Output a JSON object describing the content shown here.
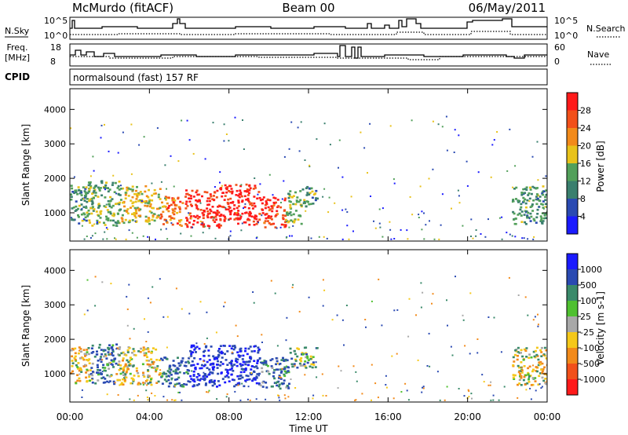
{
  "header": {
    "station": "McMurdo (fitACF)",
    "beam": "Beam 00",
    "date": "06/May/2011"
  },
  "noise_panel": {
    "left_label": "N.Sky",
    "right_label": "N.Search",
    "tick_top": "10^5",
    "tick_bottom": "10^0"
  },
  "freq_panel": {
    "left_label_line1": "Freq.",
    "left_label_line2": "[MHz]",
    "left_ticks": [
      "18",
      "8"
    ],
    "right_label": "Nave",
    "right_ticks": [
      "60",
      "0"
    ]
  },
  "cpid": {
    "label": "CPID",
    "value": "normalsound (fast) 157 RF"
  },
  "chart_data": [
    {
      "type": "heatmap",
      "name": "power",
      "xlabel": "",
      "ylabel": "Slant Range [km]",
      "x_ticks": [
        "00:00",
        "04:00",
        "08:00",
        "12:00",
        "16:00",
        "20:00",
        "00:00"
      ],
      "x_tick_hours": [
        0,
        4,
        8,
        12,
        16,
        20,
        24
      ],
      "xlim_hours": [
        0,
        24
      ],
      "ylim": [
        180,
        4600
      ],
      "y_ticks": [
        1000,
        2000,
        3000,
        4000
      ],
      "colorbar": {
        "label": "Power [dB]",
        "ticks": [
          "4",
          "8",
          "12",
          "16",
          "20",
          "24",
          "28"
        ],
        "tick_values": [
          4,
          8,
          12,
          16,
          20,
          24,
          28
        ],
        "range": [
          0,
          32
        ],
        "colors": [
          "#1a1aff",
          "#2a4ab2",
          "#3a7f6e",
          "#52a05a",
          "#e8c21a",
          "#f28a1a",
          "#f2501a",
          "#ff1a1a"
        ]
      },
      "regions": [
        {
          "t0": 0.0,
          "t1": 0.9,
          "r0": 700,
          "r1": 1900,
          "level": 12
        },
        {
          "t0": 0.9,
          "t1": 2.5,
          "r0": 650,
          "r1": 1950,
          "level": 14
        },
        {
          "t0": 2.5,
          "t1": 4.5,
          "r0": 700,
          "r1": 1800,
          "level": 18
        },
        {
          "t0": 4.5,
          "t1": 5.8,
          "r0": 650,
          "r1": 1500,
          "level": 24
        },
        {
          "t0": 5.8,
          "t1": 7.5,
          "r0": 600,
          "r1": 1700,
          "level": 29
        },
        {
          "t0": 7.5,
          "t1": 9.5,
          "r0": 650,
          "r1": 1850,
          "level": 30
        },
        {
          "t0": 9.5,
          "t1": 10.8,
          "r0": 600,
          "r1": 1500,
          "level": 28
        },
        {
          "t0": 10.8,
          "t1": 11.6,
          "r0": 700,
          "r1": 1700,
          "level": 16
        },
        {
          "t0": 11.6,
          "t1": 12.4,
          "r0": 1200,
          "r1": 1800,
          "level": 12
        },
        {
          "t0": 22.2,
          "t1": 24.0,
          "r0": 700,
          "r1": 1800,
          "level": 12
        }
      ]
    },
    {
      "type": "heatmap",
      "name": "velocity",
      "xlabel": "Time UT",
      "ylabel": "Slant Range [km]",
      "x_ticks": [
        "00:00",
        "04:00",
        "08:00",
        "12:00",
        "16:00",
        "20:00",
        "00:00"
      ],
      "x_tick_hours": [
        0,
        4,
        8,
        12,
        16,
        20,
        24
      ],
      "xlim_hours": [
        0,
        24
      ],
      "ylim": [
        180,
        4600
      ],
      "y_ticks": [
        1000,
        2000,
        3000,
        4000
      ],
      "colorbar": {
        "label": "Velocity [m s-1]",
        "ticks": [
          "1000",
          "500",
          "100",
          "25",
          "-25",
          "-100",
          "-500",
          "-1000"
        ],
        "colors": [
          "#1a1aff",
          "#2a4ab2",
          "#3a8a6a",
          "#4fc030",
          "#a8a8a8",
          "#f5c81a",
          "#f28a1a",
          "#f2501a",
          "#ff1a1a"
        ]
      },
      "regions": [
        {
          "t0": 0.0,
          "t1": 1.0,
          "r0": 750,
          "r1": 1800,
          "velocity": -200
        },
        {
          "t0": 1.0,
          "t1": 2.3,
          "r0": 700,
          "r1": 1900,
          "velocity": 300
        },
        {
          "t0": 2.3,
          "t1": 4.5,
          "r0": 700,
          "r1": 1800,
          "velocity": -150
        },
        {
          "t0": 4.5,
          "t1": 6.0,
          "r0": 650,
          "r1": 1500,
          "velocity": 400
        },
        {
          "t0": 6.0,
          "t1": 9.5,
          "r0": 650,
          "r1": 1850,
          "velocity": 700
        },
        {
          "t0": 9.5,
          "t1": 11.0,
          "r0": 600,
          "r1": 1500,
          "velocity": 300
        },
        {
          "t0": 11.0,
          "t1": 12.4,
          "r0": 1200,
          "r1": 1800,
          "velocity": 150
        },
        {
          "t0": 22.2,
          "t1": 24.0,
          "r0": 700,
          "r1": 1800,
          "velocity": -100
        }
      ]
    }
  ]
}
